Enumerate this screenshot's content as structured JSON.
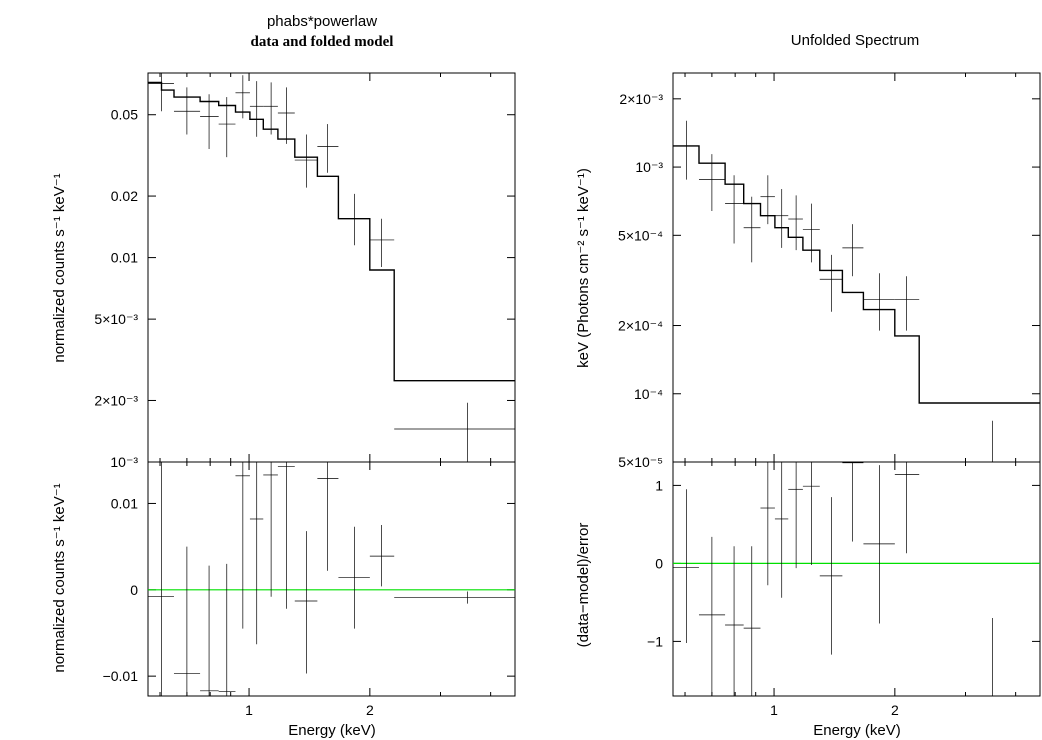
{
  "chart_data": [
    {
      "type": "scatter",
      "panel": "top-left",
      "title": "phabs*powerlaw",
      "subtitle": "data and folded model",
      "ylabel": "normalized counts s⁻¹ keV⁻¹",
      "xscale": "log",
      "yscale": "log",
      "xlim": [
        0.56,
        4.6
      ],
      "ylim": [
        0.001,
        0.08
      ],
      "yticks": [
        {
          "value": 0.05,
          "label": "0.05"
        },
        {
          "value": 0.02,
          "label": "0.02"
        },
        {
          "value": 0.01,
          "label": "0.01"
        },
        {
          "value": 0.005,
          "label": "5×10⁻³"
        },
        {
          "value": 0.002,
          "label": "2×10⁻³"
        },
        {
          "value": 0.001,
          "label": "10⁻³"
        }
      ],
      "series": [
        {
          "kind": "data",
          "color": "#000000",
          "points": [
            {
              "x": 0.605,
              "xlo": 0.56,
              "xhi": 0.65,
              "y": 0.071,
              "ylo": 0.052,
              "yhi": 0.085
            },
            {
              "x": 0.7,
              "xlo": 0.65,
              "xhi": 0.755,
              "y": 0.052,
              "ylo": 0.04,
              "yhi": 0.068
            },
            {
              "x": 0.795,
              "xlo": 0.755,
              "xhi": 0.84,
              "y": 0.049,
              "ylo": 0.034,
              "yhi": 0.063
            },
            {
              "x": 0.88,
              "xlo": 0.84,
              "xhi": 0.925,
              "y": 0.045,
              "ylo": 0.031,
              "yhi": 0.061
            },
            {
              "x": 0.965,
              "xlo": 0.925,
              "xhi": 1.005,
              "y": 0.064,
              "ylo": 0.048,
              "yhi": 0.078
            },
            {
              "x": 1.045,
              "xlo": 1.005,
              "xhi": 1.085,
              "y": 0.055,
              "ylo": 0.039,
              "yhi": 0.073
            },
            {
              "x": 1.135,
              "xlo": 1.085,
              "xhi": 1.18,
              "y": 0.055,
              "ylo": 0.04,
              "yhi": 0.072
            },
            {
              "x": 1.24,
              "xlo": 1.18,
              "xhi": 1.3,
              "y": 0.051,
              "ylo": 0.036,
              "yhi": 0.068
            },
            {
              "x": 1.39,
              "xlo": 1.3,
              "xhi": 1.48,
              "y": 0.03,
              "ylo": 0.022,
              "yhi": 0.04
            },
            {
              "x": 1.57,
              "xlo": 1.48,
              "xhi": 1.67,
              "y": 0.035,
              "ylo": 0.026,
              "yhi": 0.045
            },
            {
              "x": 1.83,
              "xlo": 1.67,
              "xhi": 2.0,
              "y": 0.0155,
              "ylo": 0.0115,
              "yhi": 0.0205
            },
            {
              "x": 2.14,
              "xlo": 2.0,
              "xhi": 2.3,
              "y": 0.0122,
              "ylo": 0.009,
              "yhi": 0.0155
            },
            {
              "x": 3.5,
              "xlo": 2.3,
              "xhi": 4.6,
              "y": 0.00145,
              "ylo": 0.001,
              "yhi": 0.00195
            }
          ]
        },
        {
          "kind": "model",
          "color": "#000000",
          "steps": [
            {
              "xlo": 0.56,
              "xhi": 0.605,
              "y": 0.072
            },
            {
              "xlo": 0.605,
              "xhi": 0.65,
              "y": 0.066
            },
            {
              "xlo": 0.65,
              "xhi": 0.755,
              "y": 0.061
            },
            {
              "xlo": 0.755,
              "xhi": 0.84,
              "y": 0.058
            },
            {
              "xlo": 0.84,
              "xhi": 0.925,
              "y": 0.0555
            },
            {
              "xlo": 0.925,
              "xhi": 1.005,
              "y": 0.0515
            },
            {
              "xlo": 1.005,
              "xhi": 1.085,
              "y": 0.0475
            },
            {
              "xlo": 1.085,
              "xhi": 1.18,
              "y": 0.0425
            },
            {
              "xlo": 1.18,
              "xhi": 1.3,
              "y": 0.038
            },
            {
              "xlo": 1.3,
              "xhi": 1.48,
              "y": 0.031
            },
            {
              "xlo": 1.48,
              "xhi": 1.67,
              "y": 0.025
            },
            {
              "xlo": 1.67,
              "xhi": 2.0,
              "y": 0.0155
            },
            {
              "xlo": 2.0,
              "xhi": 2.3,
              "y": 0.0087
            },
            {
              "xlo": 2.3,
              "xhi": 4.6,
              "y": 0.0025
            }
          ]
        }
      ]
    },
    {
      "type": "scatter",
      "panel": "bottom-left",
      "ylabel": "normalized counts s⁻¹ keV⁻¹",
      "xlabel": "Energy (keV)",
      "xscale": "log",
      "yscale": "linear",
      "xlim": [
        0.56,
        4.6
      ],
      "ylim": [
        -0.0123,
        0.0148
      ],
      "xticks": [
        {
          "value": 1,
          "label": "1"
        },
        {
          "value": 2,
          "label": "2"
        }
      ],
      "yticks": [
        {
          "value": 0.01,
          "label": "0.01"
        },
        {
          "value": 0,
          "label": "0"
        },
        {
          "value": -0.01,
          "label": "−0.01"
        }
      ],
      "zero_line_color": "#00e000",
      "series": [
        {
          "kind": "residuals",
          "color": "#000000",
          "points": [
            {
              "x": 0.605,
              "xlo": 0.56,
              "xhi": 0.65,
              "y": -0.0008,
              "ylo": -0.0123,
              "yhi": 0.0148
            },
            {
              "x": 0.7,
              "xlo": 0.65,
              "xhi": 0.755,
              "y": -0.0097,
              "ylo": -0.0123,
              "yhi": 0.005
            },
            {
              "x": 0.795,
              "xlo": 0.755,
              "xhi": 0.84,
              "y": -0.0117,
              "ylo": -0.0123,
              "yhi": 0.0028
            },
            {
              "x": 0.88,
              "xlo": 0.84,
              "xhi": 0.925,
              "y": -0.0118,
              "ylo": -0.0123,
              "yhi": 0.003
            },
            {
              "x": 0.965,
              "xlo": 0.925,
              "xhi": 1.005,
              "y": 0.0132,
              "ylo": -0.0045,
              "yhi": 0.0148
            },
            {
              "x": 1.045,
              "xlo": 1.005,
              "xhi": 1.085,
              "y": 0.0082,
              "ylo": -0.0063,
              "yhi": 0.0148
            },
            {
              "x": 1.135,
              "xlo": 1.085,
              "xhi": 1.18,
              "y": 0.0133,
              "ylo": -0.0008,
              "yhi": 0.0148
            },
            {
              "x": 1.24,
              "xlo": 1.18,
              "xhi": 1.3,
              "y": 0.0143,
              "ylo": -0.0022,
              "yhi": 0.0148
            },
            {
              "x": 1.39,
              "xlo": 1.3,
              "xhi": 1.48,
              "y": -0.0013,
              "ylo": -0.0097,
              "yhi": 0.0068
            },
            {
              "x": 1.57,
              "xlo": 1.48,
              "xhi": 1.67,
              "y": 0.0129,
              "ylo": 0.0022,
              "yhi": 0.0148
            },
            {
              "x": 1.83,
              "xlo": 1.67,
              "xhi": 2.0,
              "y": 0.0014,
              "ylo": -0.0045,
              "yhi": 0.0073
            },
            {
              "x": 2.14,
              "xlo": 2.0,
              "xhi": 2.3,
              "y": 0.0039,
              "ylo": 0.0004,
              "yhi": 0.0075
            },
            {
              "x": 3.5,
              "xlo": 2.3,
              "xhi": 4.6,
              "y": -0.0009,
              "ylo": -0.0016,
              "yhi": -0.0002
            }
          ]
        }
      ]
    },
    {
      "type": "scatter",
      "panel": "top-right",
      "title": "Unfolded Spectrum",
      "ylabel": "keV (Photons cm⁻² s⁻¹ keV⁻¹)",
      "xscale": "log",
      "yscale": "log",
      "xlim": [
        0.56,
        4.6
      ],
      "ylim": [
        5e-05,
        0.0026
      ],
      "yticks": [
        {
          "value": 0.002,
          "label": "2×10⁻³"
        },
        {
          "value": 0.001,
          "label": "10⁻³"
        },
        {
          "value": 0.0005,
          "label": "5×10⁻⁴"
        },
        {
          "value": 0.0002,
          "label": "2×10⁻⁴"
        },
        {
          "value": 0.0001,
          "label": "10⁻⁴"
        },
        {
          "value": 5e-05,
          "label": "5×10⁻⁵"
        }
      ],
      "series": [
        {
          "kind": "data",
          "color": "#000000",
          "points": [
            {
              "x": 0.605,
              "xlo": 0.56,
              "xhi": 0.65,
              "y": 0.00124,
              "ylo": 0.00088,
              "yhi": 0.0016
            },
            {
              "x": 0.7,
              "xlo": 0.65,
              "xhi": 0.755,
              "y": 0.00088,
              "ylo": 0.00064,
              "yhi": 0.00114
            },
            {
              "x": 0.795,
              "xlo": 0.755,
              "xhi": 0.84,
              "y": 0.00069,
              "ylo": 0.00046,
              "yhi": 0.00092
            },
            {
              "x": 0.88,
              "xlo": 0.84,
              "xhi": 0.925,
              "y": 0.00054,
              "ylo": 0.00038,
              "yhi": 0.00074
            },
            {
              "x": 0.965,
              "xlo": 0.925,
              "xhi": 1.005,
              "y": 0.00074,
              "ylo": 0.00056,
              "yhi": 0.00092
            },
            {
              "x": 1.045,
              "xlo": 1.005,
              "xhi": 1.085,
              "y": 0.00061,
              "ylo": 0.00044,
              "yhi": 0.0008
            },
            {
              "x": 1.135,
              "xlo": 1.085,
              "xhi": 1.18,
              "y": 0.00059,
              "ylo": 0.00043,
              "yhi": 0.00075
            },
            {
              "x": 1.24,
              "xlo": 1.18,
              "xhi": 1.3,
              "y": 0.00053,
              "ylo": 0.00038,
              "yhi": 0.00069
            },
            {
              "x": 1.39,
              "xlo": 1.3,
              "xhi": 1.48,
              "y": 0.00032,
              "ylo": 0.00023,
              "yhi": 0.00041
            },
            {
              "x": 1.57,
              "xlo": 1.48,
              "xhi": 1.67,
              "y": 0.00044,
              "ylo": 0.00033,
              "yhi": 0.00056
            },
            {
              "x": 1.83,
              "xlo": 1.67,
              "xhi": 2.0,
              "y": 0.00026,
              "ylo": 0.00019,
              "yhi": 0.00034
            },
            {
              "x": 2.14,
              "xlo": 2.0,
              "xhi": 2.3,
              "y": 0.00026,
              "ylo": 0.00019,
              "yhi": 0.00033
            },
            {
              "x": 3.5,
              "xlo": 2.3,
              "xhi": 4.6,
              "y": 5e-05,
              "ylo": 5e-05,
              "yhi": 7.6e-05
            }
          ]
        },
        {
          "kind": "model",
          "color": "#000000",
          "steps": [
            {
              "xlo": 0.56,
              "xhi": 0.65,
              "y": 0.00124
            },
            {
              "xlo": 0.65,
              "xhi": 0.755,
              "y": 0.00104
            },
            {
              "xlo": 0.755,
              "xhi": 0.84,
              "y": 0.00084
            },
            {
              "xlo": 0.84,
              "xhi": 0.925,
              "y": 0.00069
            },
            {
              "xlo": 0.925,
              "xhi": 1.005,
              "y": 0.00061
            },
            {
              "xlo": 1.005,
              "xhi": 1.085,
              "y": 0.00054
            },
            {
              "xlo": 1.085,
              "xhi": 1.18,
              "y": 0.00049
            },
            {
              "xlo": 1.18,
              "xhi": 1.3,
              "y": 0.00043
            },
            {
              "xlo": 1.3,
              "xhi": 1.48,
              "y": 0.00035
            },
            {
              "xlo": 1.48,
              "xhi": 1.67,
              "y": 0.00028
            },
            {
              "xlo": 1.67,
              "xhi": 2.0,
              "y": 0.000235
            },
            {
              "xlo": 2.0,
              "xhi": 2.3,
              "y": 0.00018
            },
            {
              "xlo": 2.3,
              "xhi": 4.6,
              "y": 9.1e-05
            }
          ]
        }
      ]
    },
    {
      "type": "scatter",
      "panel": "bottom-right",
      "ylabel": "(data−model)/error",
      "xlabel": "Energy (keV)",
      "xscale": "log",
      "yscale": "linear",
      "xlim": [
        0.56,
        4.6
      ],
      "ylim": [
        -1.7,
        1.3
      ],
      "xticks": [
        {
          "value": 1,
          "label": "1"
        },
        {
          "value": 2,
          "label": "2"
        }
      ],
      "yticks": [
        {
          "value": 1,
          "label": "1"
        },
        {
          "value": 0,
          "label": "0"
        },
        {
          "value": -1,
          "label": "−1"
        }
      ],
      "zero_line_color": "#00e000",
      "series": [
        {
          "kind": "residuals",
          "color": "#000000",
          "points": [
            {
              "x": 0.605,
              "xlo": 0.56,
              "xhi": 0.65,
              "y": -0.05,
              "ylo": -1.02,
              "yhi": 0.95
            },
            {
              "x": 0.7,
              "xlo": 0.65,
              "xhi": 0.755,
              "y": -0.66,
              "ylo": -1.68,
              "yhi": 0.34
            },
            {
              "x": 0.795,
              "xlo": 0.755,
              "xhi": 0.84,
              "y": -0.79,
              "ylo": -1.7,
              "yhi": 0.22
            },
            {
              "x": 0.88,
              "xlo": 0.84,
              "xhi": 0.925,
              "y": -0.83,
              "ylo": -1.7,
              "yhi": 0.22
            },
            {
              "x": 0.965,
              "xlo": 0.925,
              "xhi": 1.005,
              "y": 0.71,
              "ylo": -0.28,
              "yhi": 1.3
            },
            {
              "x": 1.045,
              "xlo": 1.005,
              "xhi": 1.085,
              "y": 0.57,
              "ylo": -0.44,
              "yhi": 1.3
            },
            {
              "x": 1.135,
              "xlo": 1.085,
              "xhi": 1.18,
              "y": 0.95,
              "ylo": -0.06,
              "yhi": 1.3
            },
            {
              "x": 1.24,
              "xlo": 1.18,
              "xhi": 1.3,
              "y": 0.99,
              "ylo": -0.02,
              "yhi": 1.3
            },
            {
              "x": 1.39,
              "xlo": 1.3,
              "xhi": 1.48,
              "y": -0.16,
              "ylo": -1.17,
              "yhi": 0.85
            },
            {
              "x": 1.57,
              "xlo": 1.48,
              "xhi": 1.67,
              "y": 1.29,
              "ylo": 0.28,
              "yhi": 1.3
            },
            {
              "x": 1.83,
              "xlo": 1.67,
              "xhi": 2.0,
              "y": 0.25,
              "ylo": -0.77,
              "yhi": 1.26
            },
            {
              "x": 2.14,
              "xlo": 2.0,
              "xhi": 2.3,
              "y": 1.14,
              "ylo": 0.13,
              "yhi": 1.3
            },
            {
              "x": 3.5,
              "xlo": 2.3,
              "xhi": 4.6,
              "y": -1.7,
              "ylo": -1.7,
              "yhi": -0.7
            }
          ]
        }
      ]
    }
  ]
}
